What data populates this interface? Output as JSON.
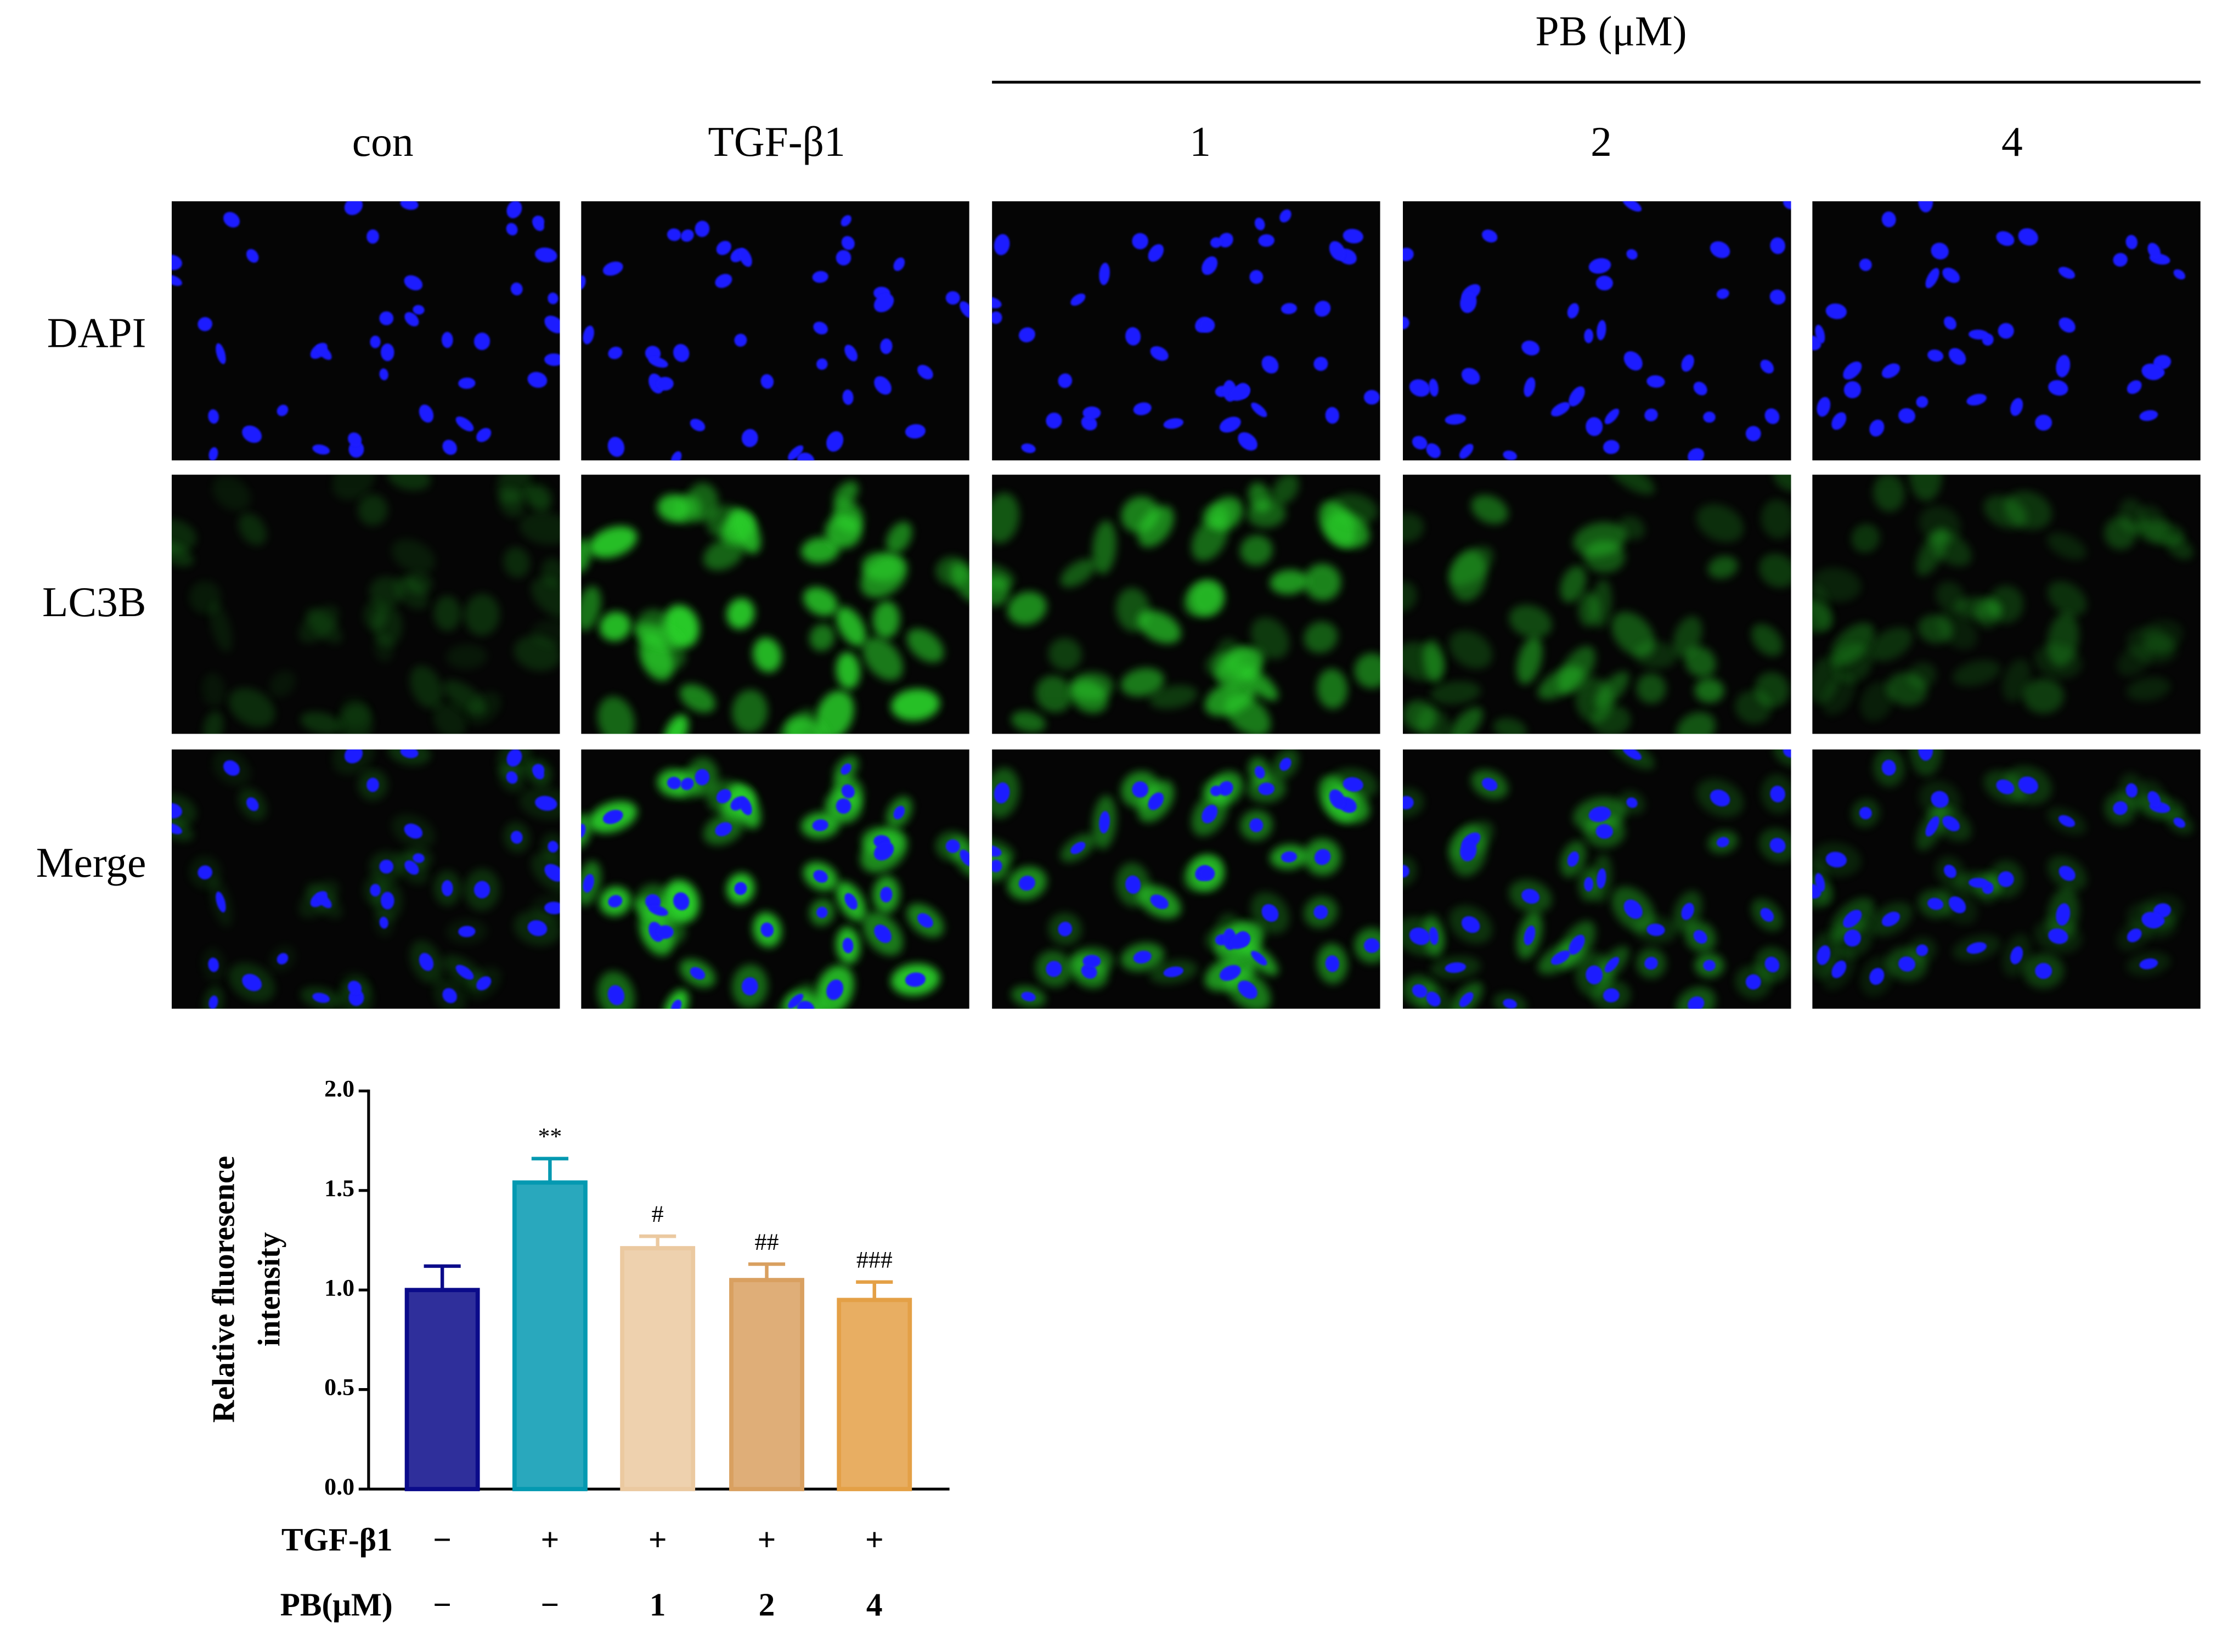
{
  "figure": {
    "group_label": "PB (μM)",
    "columns": [
      "con",
      "TGF-β1",
      "1",
      "2",
      "4"
    ],
    "rows": [
      "DAPI",
      "LC3B",
      "Merge"
    ]
  },
  "chart_data": {
    "type": "bar",
    "ylabel": [
      "Relative fluoresence",
      "intensity"
    ],
    "values": [
      1.0,
      1.54,
      1.21,
      1.05,
      0.95
    ],
    "errors": [
      0.12,
      0.12,
      0.06,
      0.08,
      0.09
    ],
    "colors": [
      "#0b0b8a",
      "#0499b1",
      "#ebc9a0",
      "#d9a060",
      "#e4a046"
    ],
    "annotations": [
      null,
      "**",
      "#",
      "##",
      "###"
    ],
    "ylim": [
      0,
      2
    ],
    "yticks": [
      {
        "value": 0,
        "label": "0.0"
      },
      {
        "value": 0.5,
        "label": "0.5"
      },
      {
        "value": 1,
        "label": "1.0"
      },
      {
        "value": 1.5,
        "label": "1.5"
      },
      {
        "value": 2,
        "label": "2.0"
      }
    ],
    "treatments": [
      {
        "label": "TGF-β1",
        "values": [
          "−",
          "+",
          "+",
          "+",
          "+"
        ]
      },
      {
        "label": "PB(μM)",
        "values": [
          "−",
          "−",
          "1",
          "2",
          "4"
        ]
      }
    ]
  }
}
